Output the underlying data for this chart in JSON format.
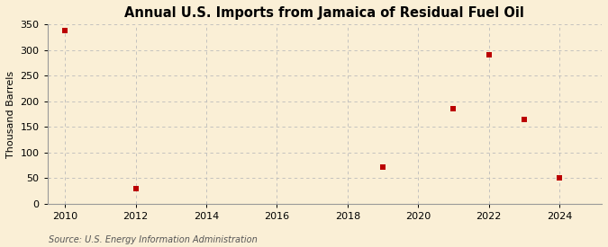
{
  "title": "Annual U.S. Imports from Jamaica of Residual Fuel Oil",
  "ylabel": "Thousand Barrels",
  "source": "Source: U.S. Energy Information Administration",
  "background_color": "#faefd6",
  "data_points": [
    {
      "year": 2010,
      "value": 338
    },
    {
      "year": 2012,
      "value": 30
    },
    {
      "year": 2019,
      "value": 72
    },
    {
      "year": 2021,
      "value": 186
    },
    {
      "year": 2022,
      "value": 291
    },
    {
      "year": 2023,
      "value": 165
    },
    {
      "year": 2024,
      "value": 51
    }
  ],
  "marker_color": "#bb0000",
  "marker_size": 4,
  "xlim": [
    2009.5,
    2025.2
  ],
  "ylim": [
    0,
    350
  ],
  "xticks": [
    2010,
    2012,
    2014,
    2016,
    2018,
    2020,
    2022,
    2024
  ],
  "yticks": [
    0,
    50,
    100,
    150,
    200,
    250,
    300,
    350
  ],
  "grid_color": "#bbbbbb",
  "grid_style": "--",
  "title_fontsize": 10.5,
  "label_fontsize": 8,
  "tick_fontsize": 8,
  "source_fontsize": 7
}
